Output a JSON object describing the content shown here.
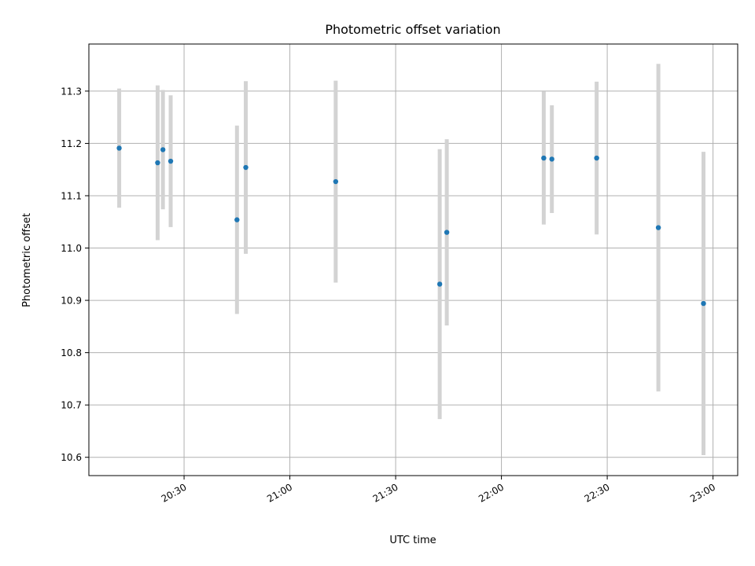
{
  "chart_data": {
    "type": "scatter",
    "title": "Photometric offset variation",
    "xlabel": "UTC time",
    "ylabel": "Photometric offset",
    "xlim": [
      "20:03",
      "23:07"
    ],
    "ylim": [
      10.565,
      11.39
    ],
    "grid": true,
    "x_ticks": [
      "20:30",
      "21:00",
      "21:30",
      "22:00",
      "22:30",
      "23:00"
    ],
    "y_ticks": [
      10.6,
      10.7,
      10.8,
      10.9,
      11.0,
      11.1,
      11.2,
      11.3
    ],
    "colors": {
      "marker": "#1f77b4",
      "errorbar": "#d3d3d3",
      "grid": "#b0b0b0"
    },
    "series": [
      {
        "points": [
          {
            "x": "20:11.6",
            "y": 11.191,
            "err": 0.114
          },
          {
            "x": "20:22.5",
            "y": 11.163,
            "err": 0.148
          },
          {
            "x": "20:24.0",
            "y": 11.188,
            "err": 0.114
          },
          {
            "x": "20:26.2",
            "y": 11.166,
            "err": 0.126
          },
          {
            "x": "20:45.0",
            "y": 11.054,
            "err": 0.18
          },
          {
            "x": "20:47.5",
            "y": 11.154,
            "err": 0.165
          },
          {
            "x": "21:13.0",
            "y": 11.127,
            "err": 0.193
          },
          {
            "x": "21:42.5",
            "y": 10.931,
            "err": 0.258
          },
          {
            "x": "21:44.5",
            "y": 11.03,
            "err": 0.178
          },
          {
            "x": "22:12.0",
            "y": 11.172,
            "err": 0.127
          },
          {
            "x": "22:14.3",
            "y": 11.17,
            "err": 0.103
          },
          {
            "x": "22:27.0",
            "y": 11.172,
            "err": 0.146
          },
          {
            "x": "22:44.5",
            "y": 11.039,
            "err": 0.313
          },
          {
            "x": "22:57.3",
            "y": 10.894,
            "err": 0.29
          }
        ]
      }
    ]
  }
}
